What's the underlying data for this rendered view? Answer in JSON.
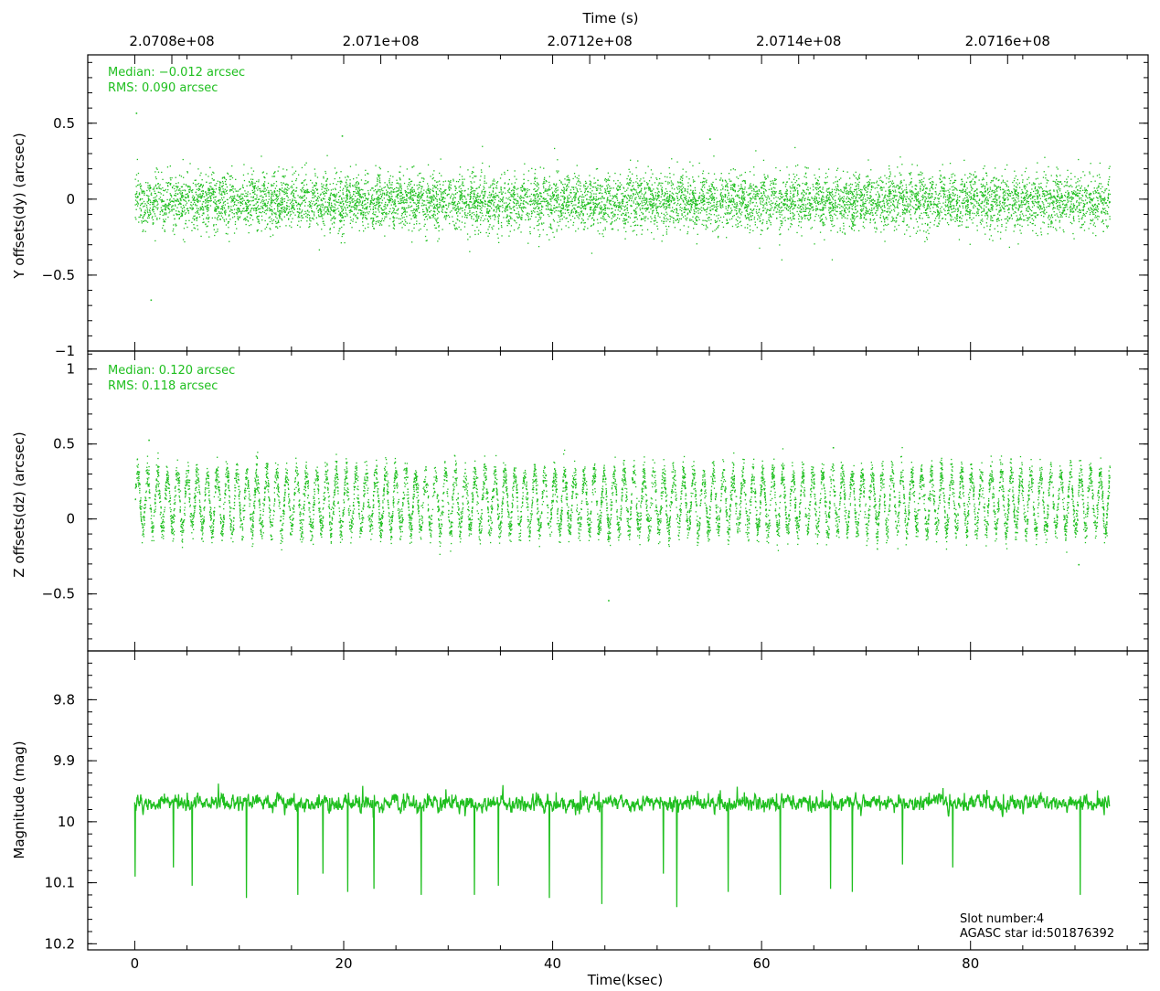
{
  "chart_data": [
    {
      "type": "scatter",
      "name": "dy",
      "ylabel": "Y offsets(dy) (arcsec)",
      "ylim": [
        -1.0,
        0.95
      ],
      "yticks": [
        -1,
        -0.5,
        0,
        0.5
      ],
      "ytick_labels": [
        "−1",
        "−0.5",
        "0",
        "0.5"
      ],
      "xlim": [
        -4.5,
        97
      ],
      "stats": [
        "Median: −0.012 arcsec",
        "RMS: 0.090 arcsec"
      ],
      "color": "#1fbf1f",
      "series": {
        "x_range": [
          0,
          93.3
        ],
        "center": -0.012,
        "rms": 0.09,
        "oscillation_period_ksec": 1.0,
        "oscillation_amplitude": 0.04,
        "outliers": [
          {
            "x": 0.1,
            "y": 0.57
          },
          {
            "x": 1.5,
            "y": -0.66
          },
          {
            "x": 19.8,
            "y": 0.42
          },
          {
            "x": 55.0,
            "y": 0.4
          }
        ]
      }
    },
    {
      "type": "scatter",
      "name": "dz",
      "ylabel": "Z offsets(dz) (arcsec)",
      "ylim": [
        -0.88,
        1.12
      ],
      "yticks": [
        -0.5,
        0,
        0.5,
        1
      ],
      "ytick_labels": [
        "−0.5",
        "0",
        "0.5",
        "1"
      ],
      "xlim": [
        -4.5,
        97
      ],
      "stats": [
        "Median: 0.120 arcsec",
        "RMS: 0.118 arcsec"
      ],
      "color": "#1fbf1f",
      "series": {
        "x_range": [
          0,
          93.3
        ],
        "center": 0.12,
        "rms": 0.118,
        "oscillation_period_ksec": 0.95,
        "oscillation_amplitude": 0.19,
        "outliers": [
          {
            "x": 1.3,
            "y": 0.53
          },
          {
            "x": 66.8,
            "y": 0.48
          },
          {
            "x": 45.3,
            "y": -0.54
          },
          {
            "x": 90.3,
            "y": -0.3
          }
        ]
      }
    },
    {
      "type": "line",
      "name": "mag",
      "ylabel": "Magnitude (mag)",
      "ylim": [
        10.21,
        9.72
      ],
      "yticks": [
        9.8,
        9.9,
        10,
        10.1,
        10.2
      ],
      "ytick_labels": [
        "9.8",
        "9.9",
        "10",
        "10.1",
        "10.2"
      ],
      "xlim": [
        -4.5,
        97
      ],
      "color": "#1fbf1f",
      "series": {
        "x_range": [
          0,
          93.3
        ],
        "center": 9.97,
        "rms": 0.012,
        "dips": [
          {
            "x": 0.05,
            "y": 10.09
          },
          {
            "x": 3.7,
            "y": 10.075
          },
          {
            "x": 5.5,
            "y": 10.105
          },
          {
            "x": 10.7,
            "y": 10.125
          },
          {
            "x": 15.6,
            "y": 10.12
          },
          {
            "x": 18.0,
            "y": 10.085
          },
          {
            "x": 20.4,
            "y": 10.115
          },
          {
            "x": 22.9,
            "y": 10.11
          },
          {
            "x": 27.4,
            "y": 10.12
          },
          {
            "x": 32.5,
            "y": 10.12
          },
          {
            "x": 34.8,
            "y": 10.105
          },
          {
            "x": 39.7,
            "y": 10.125
          },
          {
            "x": 44.7,
            "y": 10.135
          },
          {
            "x": 50.6,
            "y": 10.085
          },
          {
            "x": 51.9,
            "y": 10.14
          },
          {
            "x": 56.8,
            "y": 10.115
          },
          {
            "x": 61.8,
            "y": 10.12
          },
          {
            "x": 66.6,
            "y": 10.11
          },
          {
            "x": 68.7,
            "y": 10.115
          },
          {
            "x": 73.5,
            "y": 10.07
          },
          {
            "x": 78.3,
            "y": 10.075
          },
          {
            "x": 90.5,
            "y": 10.12
          }
        ]
      }
    }
  ],
  "top_axis": {
    "label": "Time (s)",
    "ticks": [
      {
        "ksec": 3.55,
        "label": "2.0708e+08"
      },
      {
        "ksec": 23.55,
        "label": "2.071e+08"
      },
      {
        "ksec": 43.55,
        "label": "2.0712e+08"
      },
      {
        "ksec": 63.55,
        "label": "2.0714e+08"
      },
      {
        "ksec": 83.55,
        "label": "2.0716e+08"
      }
    ]
  },
  "bottom_axis": {
    "label": "Time(ksec)",
    "ticks": [
      0,
      20,
      40,
      60,
      80
    ]
  },
  "info": [
    "Slot number:4",
    "AGASC star id:501876392"
  ]
}
